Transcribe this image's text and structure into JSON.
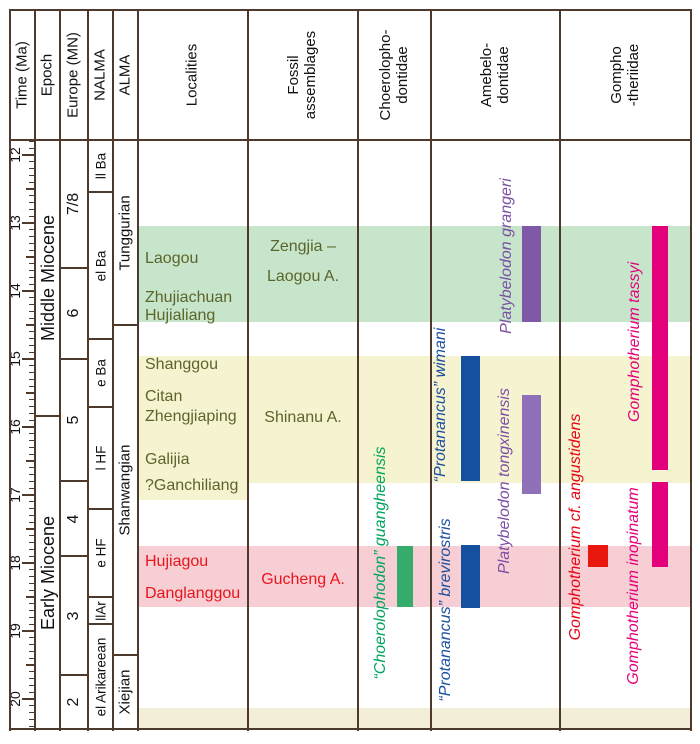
{
  "figure_title": "Miocene proboscidean biostratigraphy chart",
  "colors": {
    "frame": "#4e3a2c",
    "band_green": "#c6e5cb",
    "band_yellow": "#f6f3d0",
    "band_pink": "#f7ced3",
    "band_cream": "#f2eed8",
    "olive_text": "#5c652b",
    "red_text": "#e8151d"
  },
  "column_headers": [
    {
      "id": "time",
      "lines": [
        "Time (Ma)"
      ]
    },
    {
      "id": "epoch",
      "lines": [
        "Epoch"
      ]
    },
    {
      "id": "mn",
      "lines": [
        "Europe (MN)"
      ]
    },
    {
      "id": "nalma",
      "lines": [
        "NALMA"
      ]
    },
    {
      "id": "alma",
      "lines": [
        "ALMA"
      ]
    },
    {
      "id": "localities",
      "lines": [
        "Localities"
      ]
    },
    {
      "id": "fossil",
      "lines": [
        "Fossil",
        "assemblages"
      ]
    },
    {
      "id": "choerolophodontidae",
      "lines": [
        "Choerolopho-",
        "dontidae"
      ]
    },
    {
      "id": "amebelodontidae",
      "lines": [
        "Amebelo-",
        "dontidae"
      ]
    },
    {
      "id": "gomphotheriidae",
      "lines": [
        "Gompho",
        "-theriidae"
      ]
    }
  ],
  "chart_data": {
    "type": "stratigraphic_range_chart",
    "time_axis": {
      "title": "Time (Ma)",
      "unit": "Ma",
      "min": 11.8,
      "max": 20.45,
      "minor_step": 0.1,
      "labeled_ticks": [
        "12",
        "13",
        "14",
        "15",
        "16",
        "17",
        "18",
        "19",
        "20"
      ]
    },
    "epoch_column": {
      "title": "Epoch",
      "cells": [
        {
          "label": "Middle Miocene",
          "from": 11.78,
          "to": 15.84
        },
        {
          "label": "Early Miocene",
          "from": 15.84,
          "to": 20.46
        }
      ]
    },
    "mn_column": {
      "title": "Europe (MN)",
      "cells": [
        {
          "label": "7/8",
          "from": 11.78,
          "to": 13.66
        },
        {
          "label": "6",
          "from": 13.66,
          "to": 15.0
        },
        {
          "label": "5",
          "from": 15.0,
          "to": 16.8
        },
        {
          "label": "4",
          "from": 16.8,
          "to": 17.9
        },
        {
          "label": "3",
          "from": 17.9,
          "to": 19.65
        },
        {
          "label": "2",
          "from": 19.65,
          "to": 20.46
        }
      ]
    },
    "nalma_column": {
      "title": "NALMA",
      "cells": [
        {
          "label": "ll Ba",
          "from": 11.78,
          "to": 12.55
        },
        {
          "label": "el Ba",
          "from": 12.55,
          "to": 14.7
        },
        {
          "label": "e Ba",
          "from": 14.7,
          "to": 15.7
        },
        {
          "label": "l HF",
          "from": 15.7,
          "to": 17.2
        },
        {
          "label": "e HF",
          "from": 17.2,
          "to": 18.5
        },
        {
          "label": "llAr",
          "from": 18.5,
          "to": 18.9
        },
        {
          "label": "el Arikareean",
          "from": 18.9,
          "to": 20.46
        }
      ]
    },
    "alma_column": {
      "title": "ALMA",
      "cells": [
        {
          "label": "Tunggurian",
          "from": 11.78,
          "to": 14.5
        },
        {
          "label": "Shanwangian",
          "from": 14.5,
          "to": 19.35
        },
        {
          "label": "Xiejian",
          "from": 19.35,
          "to": 20.46
        }
      ]
    },
    "highlight_bands": [
      {
        "id": "laogou-band",
        "color": "#c6e5cb",
        "from": 13.05,
        "to": 14.45
      },
      {
        "id": "shinanu-band",
        "color": "#f6f3d0",
        "from": 14.95,
        "to": 16.82
      },
      {
        "id": "shinanu-band-localities-extension",
        "color": "#f6f3d0",
        "from": 16.82,
        "to": 17.08
      },
      {
        "id": "gucheng-band",
        "color": "#f7ced3",
        "from": 17.75,
        "to": 18.65
      },
      {
        "id": "bottom-band",
        "color": "#f2eed8",
        "from": 20.13,
        "to": 20.43
      }
    ],
    "localities_column": {
      "title": "Localities",
      "groups": [
        {
          "band": "laogou-band",
          "text_color": "#5c652b",
          "items": [
            "Laogou",
            "Zhujiachuan",
            "Hujialiang"
          ]
        },
        {
          "band": "shinanu-band",
          "text_color": "#5c652b",
          "items": [
            "Shanggou",
            "Citan",
            "Zhengjiaping",
            "Galijia",
            "?Ganchiliang"
          ]
        },
        {
          "band": "gucheng-band",
          "text_color": "#e8151d",
          "items": [
            "Hujiagou",
            "Danglanggou"
          ]
        }
      ]
    },
    "assemblage_column": {
      "title_lines": [
        "Fossil",
        "assemblages"
      ],
      "groups": [
        {
          "band": "laogou-band",
          "text_color": "#5c652b",
          "lines": [
            "Zengjia –",
            "Laogou A."
          ]
        },
        {
          "band": "shinanu-band",
          "text_color": "#5c652b",
          "lines": [
            "Shinanu A."
          ]
        },
        {
          "band": "gucheng-band",
          "text_color": "#e8151d",
          "lines": [
            "Gucheng A."
          ]
        }
      ]
    },
    "family_columns": [
      {
        "title_lines": [
          "Choerolopho-",
          "dontidae"
        ]
      },
      {
        "title_lines": [
          "Amebelo-",
          "dontidae"
        ]
      },
      {
        "title_lines": [
          "Gompho",
          "-theriidae"
        ]
      }
    ],
    "taxa": [
      {
        "id": "guangheensis",
        "family": "Choerolophodontidae",
        "name": "“Choerolophodon” guangheensis",
        "color": "#35ac69",
        "text_color": "#00a55e",
        "from": 17.75,
        "to": 18.64
      },
      {
        "id": "wimani",
        "family": "Amebelodontidae",
        "name": "“Protanancus” wimani",
        "color": "#15509f",
        "text_color": "#1b4fa0",
        "from": 14.95,
        "to": 16.8
      },
      {
        "id": "brevirostris",
        "family": "Amebelodontidae",
        "name": "“Protanancus” brevirostris",
        "color": "#15509f",
        "text_color": "#1b4fa0",
        "from": 17.73,
        "to": 18.66
      },
      {
        "id": "grangeri",
        "family": "Amebelodontidae",
        "name": "Platybelodon grangeri",
        "color": "#7f58a8",
        "text_color": "#7b4fa5",
        "from": 13.05,
        "to": 14.45
      },
      {
        "id": "tongxinensis",
        "family": "Amebelodontidae",
        "name": "Platybelodon tongxinensis",
        "color": "#9170ba",
        "text_color": "#7b4fa5",
        "from": 15.53,
        "to": 16.99
      },
      {
        "id": "tassyi",
        "family": "Gomphotheriidae",
        "name": "Gomphotherium tassyi",
        "color": "#e3007b",
        "text_color": "#e3007b",
        "from": 13.05,
        "to": 16.63
      },
      {
        "id": "inopinatum",
        "family": "Gomphotheriidae",
        "name": "Gomphotherium inopinatum",
        "color": "#e3007b",
        "text_color": "#e3007b",
        "from": 16.81,
        "to": 18.06
      },
      {
        "id": "angustidens",
        "family": "Gomphotheriidae",
        "name": "Gomphotherium cf. angustidens",
        "color": "#e8180e",
        "text_color": "#e60613",
        "from": 17.74,
        "to": 18.06
      }
    ]
  }
}
